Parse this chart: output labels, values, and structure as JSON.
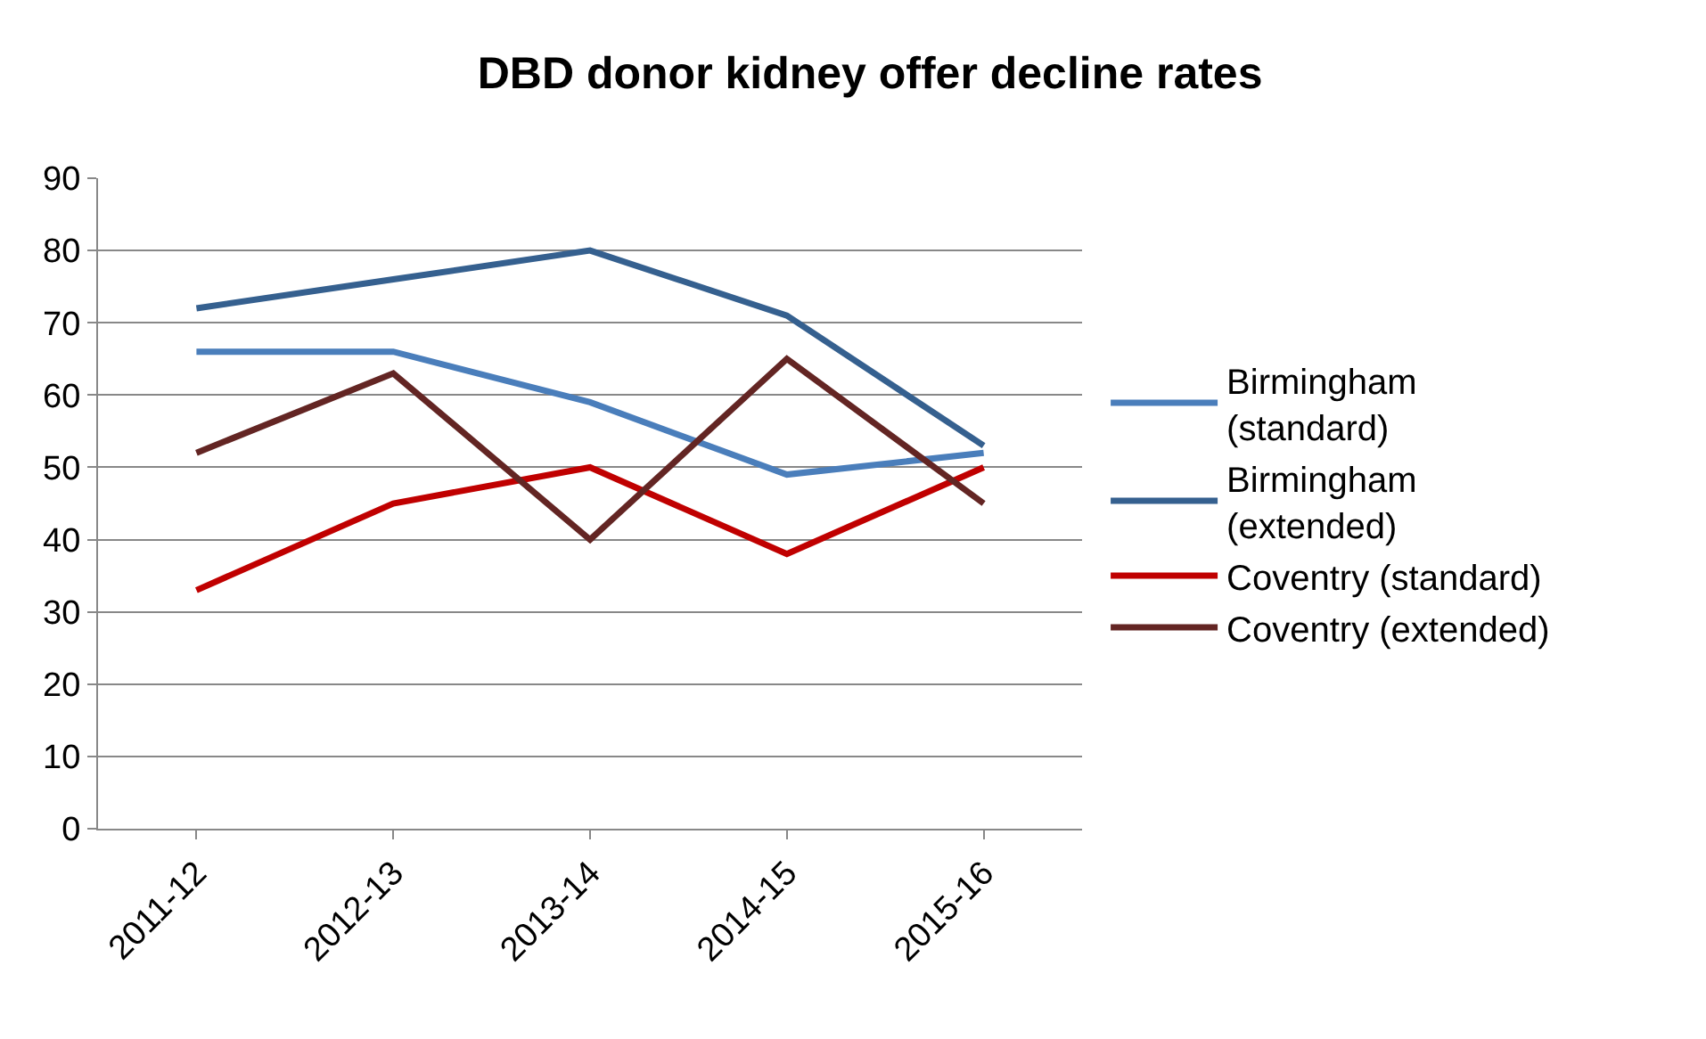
{
  "chart_data": {
    "type": "line",
    "title": "DBD donor kidney offer decline rates",
    "categories": [
      "2011-12",
      "2012-13",
      "2013-14",
      "2014-15",
      "2015-16"
    ],
    "series": [
      {
        "name": "Birmingham (standard)",
        "color": "#4a7ebb",
        "values": [
          66,
          66,
          59,
          49,
          52
        ]
      },
      {
        "name": "Birmingham (extended)",
        "color": "#35608f",
        "values": [
          72,
          76,
          80,
          71,
          53
        ]
      },
      {
        "name": "Coventry (standard)",
        "color": "#c00000",
        "values": [
          33,
          45,
          50,
          38,
          50
        ]
      },
      {
        "name": "Coventry (extended)",
        "color": "#632523",
        "values": [
          52,
          63,
          40,
          65,
          45
        ]
      }
    ],
    "ylim": [
      0,
      90
    ],
    "yticks": [
      0,
      10,
      20,
      30,
      40,
      50,
      60,
      70,
      80,
      90
    ],
    "grid": "y",
    "legend": "right",
    "marker": "none",
    "line_style": "solid"
  }
}
